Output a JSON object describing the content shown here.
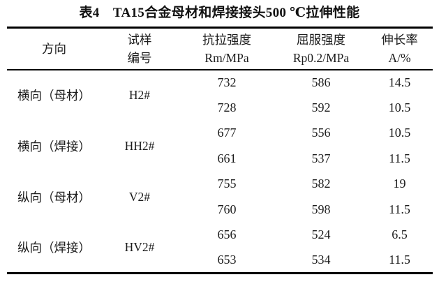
{
  "page": {
    "background": "#ffffff",
    "text_color": "#1b1b1b",
    "rule_color": "#000000"
  },
  "table": {
    "title": "表4　TA15合金母材和焊接接头500 ℃拉伸性能",
    "columns": [
      {
        "line1": "方向",
        "line2": ""
      },
      {
        "line1": "试样",
        "line2": "编号"
      },
      {
        "line1": "抗拉强度",
        "line2": "Rm/MPa"
      },
      {
        "line1": "屈服强度",
        "line2": "Rp0.2/MPa"
      },
      {
        "line1": "伸长率",
        "line2": "A/%"
      }
    ],
    "groups": [
      {
        "direction": "横向（母材）",
        "sample": "H2#",
        "rows": [
          {
            "rm": "732",
            "rp": "586",
            "a": "14.5"
          },
          {
            "rm": "728",
            "rp": "592",
            "a": "10.5"
          }
        ]
      },
      {
        "direction": "横向（焊接）",
        "sample": "HH2#",
        "rows": [
          {
            "rm": "677",
            "rp": "556",
            "a": "10.5"
          },
          {
            "rm": "661",
            "rp": "537",
            "a": "11.5"
          }
        ]
      },
      {
        "direction": "纵向（母材）",
        "sample": "V2#",
        "rows": [
          {
            "rm": "755",
            "rp": "582",
            "a": "19"
          },
          {
            "rm": "760",
            "rp": "598",
            "a": "11.5"
          }
        ]
      },
      {
        "direction": "纵向（焊接）",
        "sample": "HV2#",
        "rows": [
          {
            "rm": "656",
            "rp": "524",
            "a": "6.5"
          },
          {
            "rm": "653",
            "rp": "534",
            "a": "11.5"
          }
        ]
      }
    ]
  },
  "chart_data": {
    "type": "table",
    "title": "表4　TA15合金母材和焊接接头500 ℃拉伸性能",
    "columns": [
      "方向",
      "试样编号",
      "抗拉强度 Rm/MPa",
      "屈服强度 Rp0.2/MPa",
      "伸长率 A/%"
    ],
    "rows": [
      [
        "横向（母材）",
        "H2#",
        732,
        586,
        14.5
      ],
      [
        "横向（母材）",
        "H2#",
        728,
        592,
        10.5
      ],
      [
        "横向（焊接）",
        "HH2#",
        677,
        556,
        10.5
      ],
      [
        "横向（焊接）",
        "HH2#",
        661,
        537,
        11.5
      ],
      [
        "纵向（母材）",
        "V2#",
        755,
        582,
        19
      ],
      [
        "纵向（母材）",
        "V2#",
        760,
        598,
        11.5
      ],
      [
        "纵向（焊接）",
        "HV2#",
        656,
        524,
        6.5
      ],
      [
        "纵向（焊接）",
        "HV2#",
        653,
        534,
        11.5
      ]
    ]
  }
}
